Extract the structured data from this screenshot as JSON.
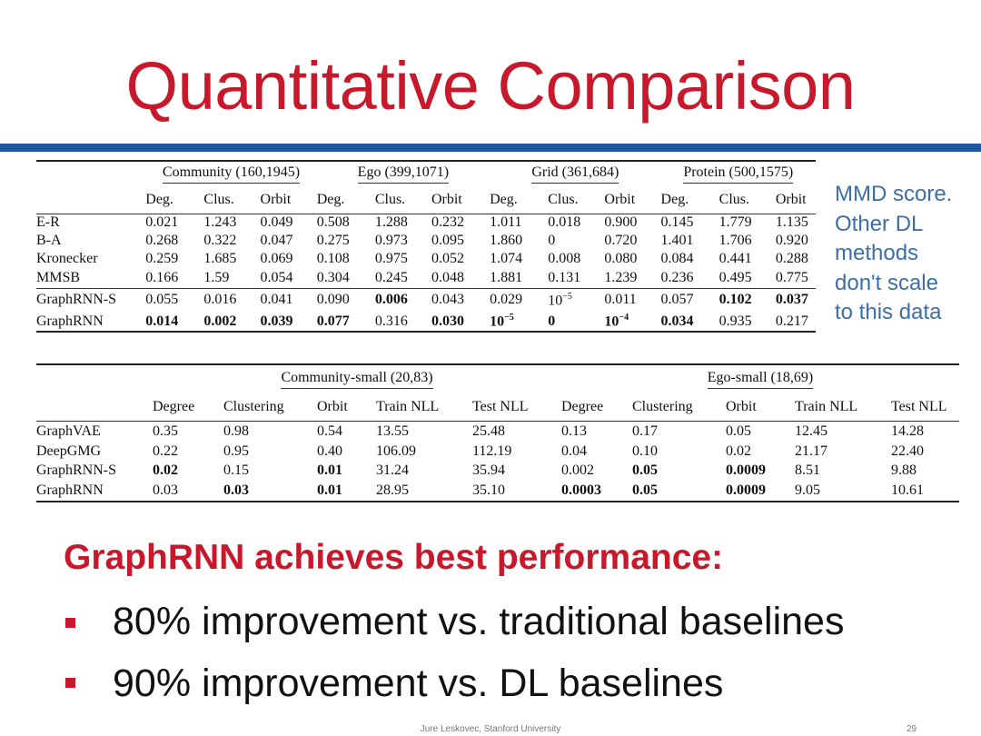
{
  "title": "Quantitative Comparison",
  "side_note": [
    "MMD score.",
    "Other DL",
    "methods",
    "don't scale",
    "to this data"
  ],
  "table1": {
    "groups": [
      "Community (160,1945)",
      "Ego (399,1071)",
      "Grid (361,684)",
      "Protein (500,1575)"
    ],
    "subheaders": [
      "Deg.",
      "Clus.",
      "Orbit",
      "Deg.",
      "Clus.",
      "Orbit",
      "Deg.",
      "Clus.",
      "Orbit",
      "Deg.",
      "Clus.",
      "Orbit"
    ],
    "rows": [
      {
        "name": "E-R",
        "values": [
          "0.021",
          "1.243",
          "0.049",
          "0.508",
          "1.288",
          "0.232",
          "1.011",
          "0.018",
          "0.900",
          "0.145",
          "1.779",
          "1.135"
        ]
      },
      {
        "name": "B-A",
        "values": [
          "0.268",
          "0.322",
          "0.047",
          "0.275",
          "0.973",
          "0.095",
          "1.860",
          "0",
          "0.720",
          "1.401",
          "1.706",
          "0.920"
        ]
      },
      {
        "name": "Kronecker",
        "values": [
          "0.259",
          "1.685",
          "0.069",
          "0.108",
          "0.975",
          "0.052",
          "1.074",
          "0.008",
          "0.080",
          "0.084",
          "0.441",
          "0.288"
        ]
      },
      {
        "name": "MMSB",
        "values": [
          "0.166",
          "1.59",
          "0.054",
          "0.304",
          "0.245",
          "0.048",
          "1.881",
          "0.131",
          "1.239",
          "0.236",
          "0.495",
          "0.775"
        ]
      },
      {
        "name": "GraphRNN-S",
        "values": [
          "0.055",
          "0.016",
          "0.041",
          "0.090",
          "0.006",
          "0.043",
          "0.029",
          "10",
          "0.011",
          "0.057",
          "0.102",
          "0.037"
        ]
      },
      {
        "name": "GraphRNN",
        "values": [
          "0.014",
          "0.002",
          "0.039",
          "0.077",
          "0.316",
          "0.030",
          "10",
          "0",
          "10",
          "0.034",
          "0.935",
          "0.217"
        ]
      }
    ],
    "exp": {
      "e1": "−5",
      "e2": "−5",
      "e3": "−4"
    }
  },
  "table2": {
    "groups": [
      "Community-small (20,83)",
      "Ego-small (18,69)"
    ],
    "subheaders": [
      "Degree",
      "Clustering",
      "Orbit",
      "Train NLL",
      "Test NLL",
      "Degree",
      "Clustering",
      "Orbit",
      "Train NLL",
      "Test NLL"
    ],
    "rows": [
      {
        "name": "GraphVAE",
        "values": [
          "0.35",
          "0.98",
          "0.54",
          "13.55",
          "25.48",
          "0.13",
          "0.17",
          "0.05",
          "12.45",
          "14.28"
        ]
      },
      {
        "name": "DeepGMG",
        "values": [
          "0.22",
          "0.95",
          "0.40",
          "106.09",
          "112.19",
          "0.04",
          "0.10",
          "0.02",
          "21.17",
          "22.40"
        ]
      },
      {
        "name": "GraphRNN-S",
        "values": [
          "0.02",
          "0.15",
          "0.01",
          "31.24",
          "35.94",
          "0.002",
          "0.05",
          "0.0009",
          "8.51",
          "9.88"
        ]
      },
      {
        "name": "GraphRNN",
        "values": [
          "0.03",
          "0.03",
          "0.01",
          "28.95",
          "35.10",
          "0.0003",
          "0.05",
          "0.0009",
          "9.05",
          "10.61"
        ]
      }
    ]
  },
  "headline": "GraphRNN achieves best performance:",
  "bullets": [
    "80% improvement vs. traditional baselines",
    "90% improvement vs. DL baselines"
  ],
  "footer": "Jure Leskovec, Stanford University",
  "page_number": "29"
}
